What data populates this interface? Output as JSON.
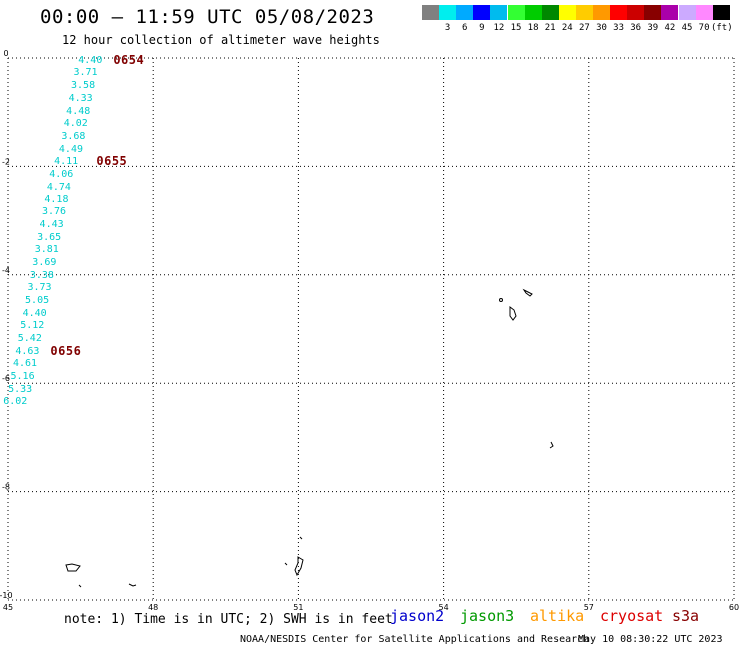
{
  "header": {
    "title": "00:00 – 11:59 UTC 05/08/2023",
    "subtitle": "12 hour collection of altimeter wave heights"
  },
  "legend": {
    "unit": "(ft)",
    "swatches": [
      {
        "color": "#808080",
        "label": ""
      },
      {
        "color": "#00eeee",
        "label": "3"
      },
      {
        "color": "#00aaff",
        "label": "6"
      },
      {
        "color": "#0000ff",
        "label": "9"
      },
      {
        "color": "#00bbee",
        "label": "12"
      },
      {
        "color": "#33ff33",
        "label": "15"
      },
      {
        "color": "#00cc00",
        "label": "18"
      },
      {
        "color": "#008800",
        "label": "21"
      },
      {
        "color": "#ffff00",
        "label": "24"
      },
      {
        "color": "#ffcc00",
        "label": "27"
      },
      {
        "color": "#ff9900",
        "label": "30"
      },
      {
        "color": "#ff0000",
        "label": "33"
      },
      {
        "color": "#cc0000",
        "label": "36"
      },
      {
        "color": "#880000",
        "label": "39"
      },
      {
        "color": "#aa00aa",
        "label": "42"
      },
      {
        "color": "#ccaaff",
        "label": "45"
      },
      {
        "color": "#ff88ff",
        "label": "70"
      },
      {
        "color": "#000000",
        "label": ""
      }
    ]
  },
  "map": {
    "x_ticks": [
      "45",
      "48",
      "51",
      "54",
      "57",
      "60"
    ],
    "y_ticks": [
      "0",
      "-2",
      "-4",
      "-6",
      "-8",
      "-10"
    ],
    "lon_range": [
      45,
      60
    ],
    "lat_range": [
      -10,
      0
    ],
    "grid": "dotted"
  },
  "wave_heights": [
    {
      "value": "4.40",
      "lon": 46.7,
      "lat": -0.05
    },
    {
      "value": "3.71",
      "lon": 46.6,
      "lat": -0.28
    },
    {
      "value": "3.58",
      "lon": 46.55,
      "lat": -0.52
    },
    {
      "value": "4.33",
      "lon": 46.5,
      "lat": -0.75
    },
    {
      "value": "4.48",
      "lon": 46.45,
      "lat": -0.99
    },
    {
      "value": "4.02",
      "lon": 46.4,
      "lat": -1.22
    },
    {
      "value": "3.68",
      "lon": 46.35,
      "lat": -1.45
    },
    {
      "value": "4.49",
      "lon": 46.3,
      "lat": -1.69
    },
    {
      "value": "4.11",
      "lon": 46.2,
      "lat": -1.92
    },
    {
      "value": "4.06",
      "lon": 46.1,
      "lat": -2.15
    },
    {
      "value": "4.74",
      "lon": 46.05,
      "lat": -2.39
    },
    {
      "value": "4.18",
      "lon": 46.0,
      "lat": -2.62
    },
    {
      "value": "3.76",
      "lon": 45.95,
      "lat": -2.85
    },
    {
      "value": "4.43",
      "lon": 45.9,
      "lat": -3.09
    },
    {
      "value": "3.65",
      "lon": 45.85,
      "lat": -3.32
    },
    {
      "value": "3.81",
      "lon": 45.8,
      "lat": -3.55
    },
    {
      "value": "3.69",
      "lon": 45.75,
      "lat": -3.79
    },
    {
      "value": "3.38",
      "lon": 45.7,
      "lat": -4.02
    },
    {
      "value": "3.73",
      "lon": 45.65,
      "lat": -4.25
    },
    {
      "value": "5.05",
      "lon": 45.6,
      "lat": -4.49
    },
    {
      "value": "4.40",
      "lon": 45.55,
      "lat": -4.72
    },
    {
      "value": "5.12",
      "lon": 45.5,
      "lat": -4.95
    },
    {
      "value": "5.42",
      "lon": 45.45,
      "lat": -5.19
    },
    {
      "value": "4.63",
      "lon": 45.4,
      "lat": -5.42
    },
    {
      "value": "4.61",
      "lon": 45.35,
      "lat": -5.65
    },
    {
      "value": "5.16",
      "lon": 45.3,
      "lat": -5.89
    },
    {
      "value": "5.33",
      "lon": 45.25,
      "lat": -6.12
    },
    {
      "value": "6.02",
      "lon": 45.15,
      "lat": -6.35
    }
  ],
  "pass_labels": [
    {
      "text": "0654",
      "lon": 47.3,
      "lat": -0.05
    },
    {
      "text": "0655",
      "lon": 46.95,
      "lat": -1.92
    },
    {
      "text": "0656",
      "lon": 46.0,
      "lat": -5.42
    }
  ],
  "footer": {
    "note": "note: 1) Time is in UTC; 2) SWH is in feet",
    "satellites": [
      {
        "name": "jason2",
        "color": "#0000cc"
      },
      {
        "name": "jason3",
        "color": "#009900"
      },
      {
        "name": "altika",
        "color": "#ff9900"
      },
      {
        "name": "cryosat",
        "color": "#dd0000"
      },
      {
        "name": "s3a",
        "color": "#880000"
      }
    ],
    "credit": "NOAA/NESDIS Center for Satellite Applications and Research",
    "timestamp": "May 10 08:30:22 UTC 2023"
  }
}
